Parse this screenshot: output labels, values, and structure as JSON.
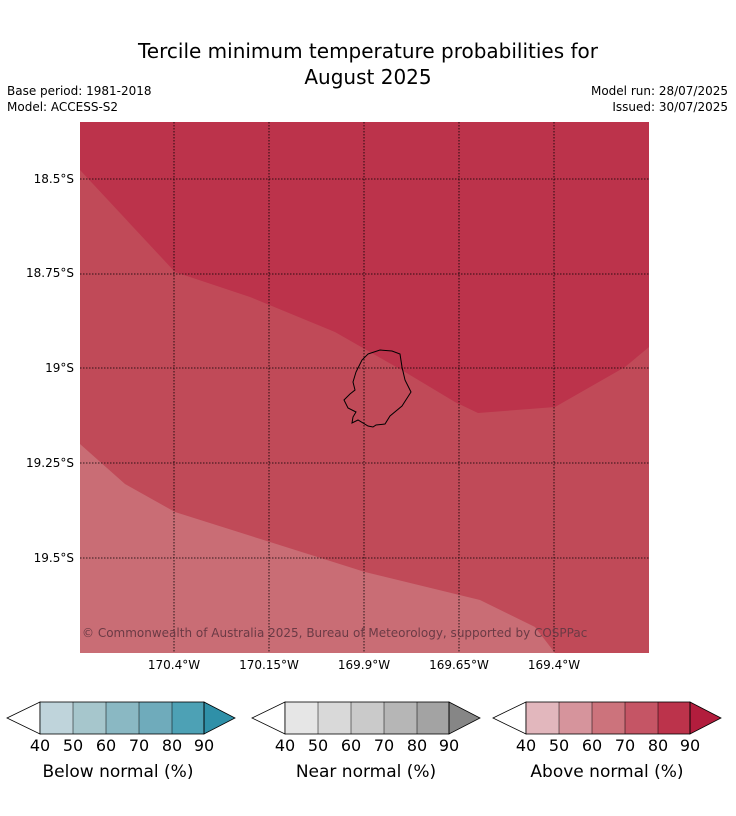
{
  "title_line1": "Tercile minimum temperature probabilities for",
  "title_line2": "August 2025",
  "base_period": "Base period: 1981-2018",
  "model": "Model: ACCESS-S2",
  "model_run": "Model run: 28/07/2025",
  "issued": "Issued: 30/07/2025",
  "map": {
    "lat_labels": [
      "18.5°S",
      "18.75°S",
      "19°S",
      "19.25°S",
      "19.5°S"
    ],
    "lon_labels": [
      "170.4°W",
      "170.15°W",
      "169.9°W",
      "169.65°W",
      "169.4°W"
    ],
    "copyright": "© Commonwealth of Australia 2025, Bureau of Meteorology, supported by COSPPac",
    "colors": {
      "above_60_70": "#c96d75",
      "above_70_80": "#c04a58",
      "above_80_90": "#bc334b"
    }
  },
  "legends": [
    {
      "title": "Below normal (%)",
      "ticks": [
        "40",
        "50",
        "60",
        "70",
        "80",
        "90"
      ],
      "colors": [
        "#ffffff",
        "#bfd4db",
        "#a6c6cc",
        "#8ab8c3",
        "#6fabbb",
        "#4da1b5",
        "#2f90a8"
      ]
    },
    {
      "title": "Near normal (%)",
      "ticks": [
        "40",
        "50",
        "60",
        "70",
        "80",
        "90"
      ],
      "colors": [
        "#ffffff",
        "#e6e6e6",
        "#d9d9d9",
        "#cacaca",
        "#b6b6b6",
        "#a3a3a3",
        "#868686"
      ]
    },
    {
      "title": "Above normal (%)",
      "ticks": [
        "40",
        "50",
        "60",
        "70",
        "80",
        "90"
      ],
      "colors": [
        "#ffffff",
        "#e2b7bd",
        "#d6949c",
        "#cc737c",
        "#c55565",
        "#bc334b",
        "#b21d3d"
      ]
    }
  ]
}
